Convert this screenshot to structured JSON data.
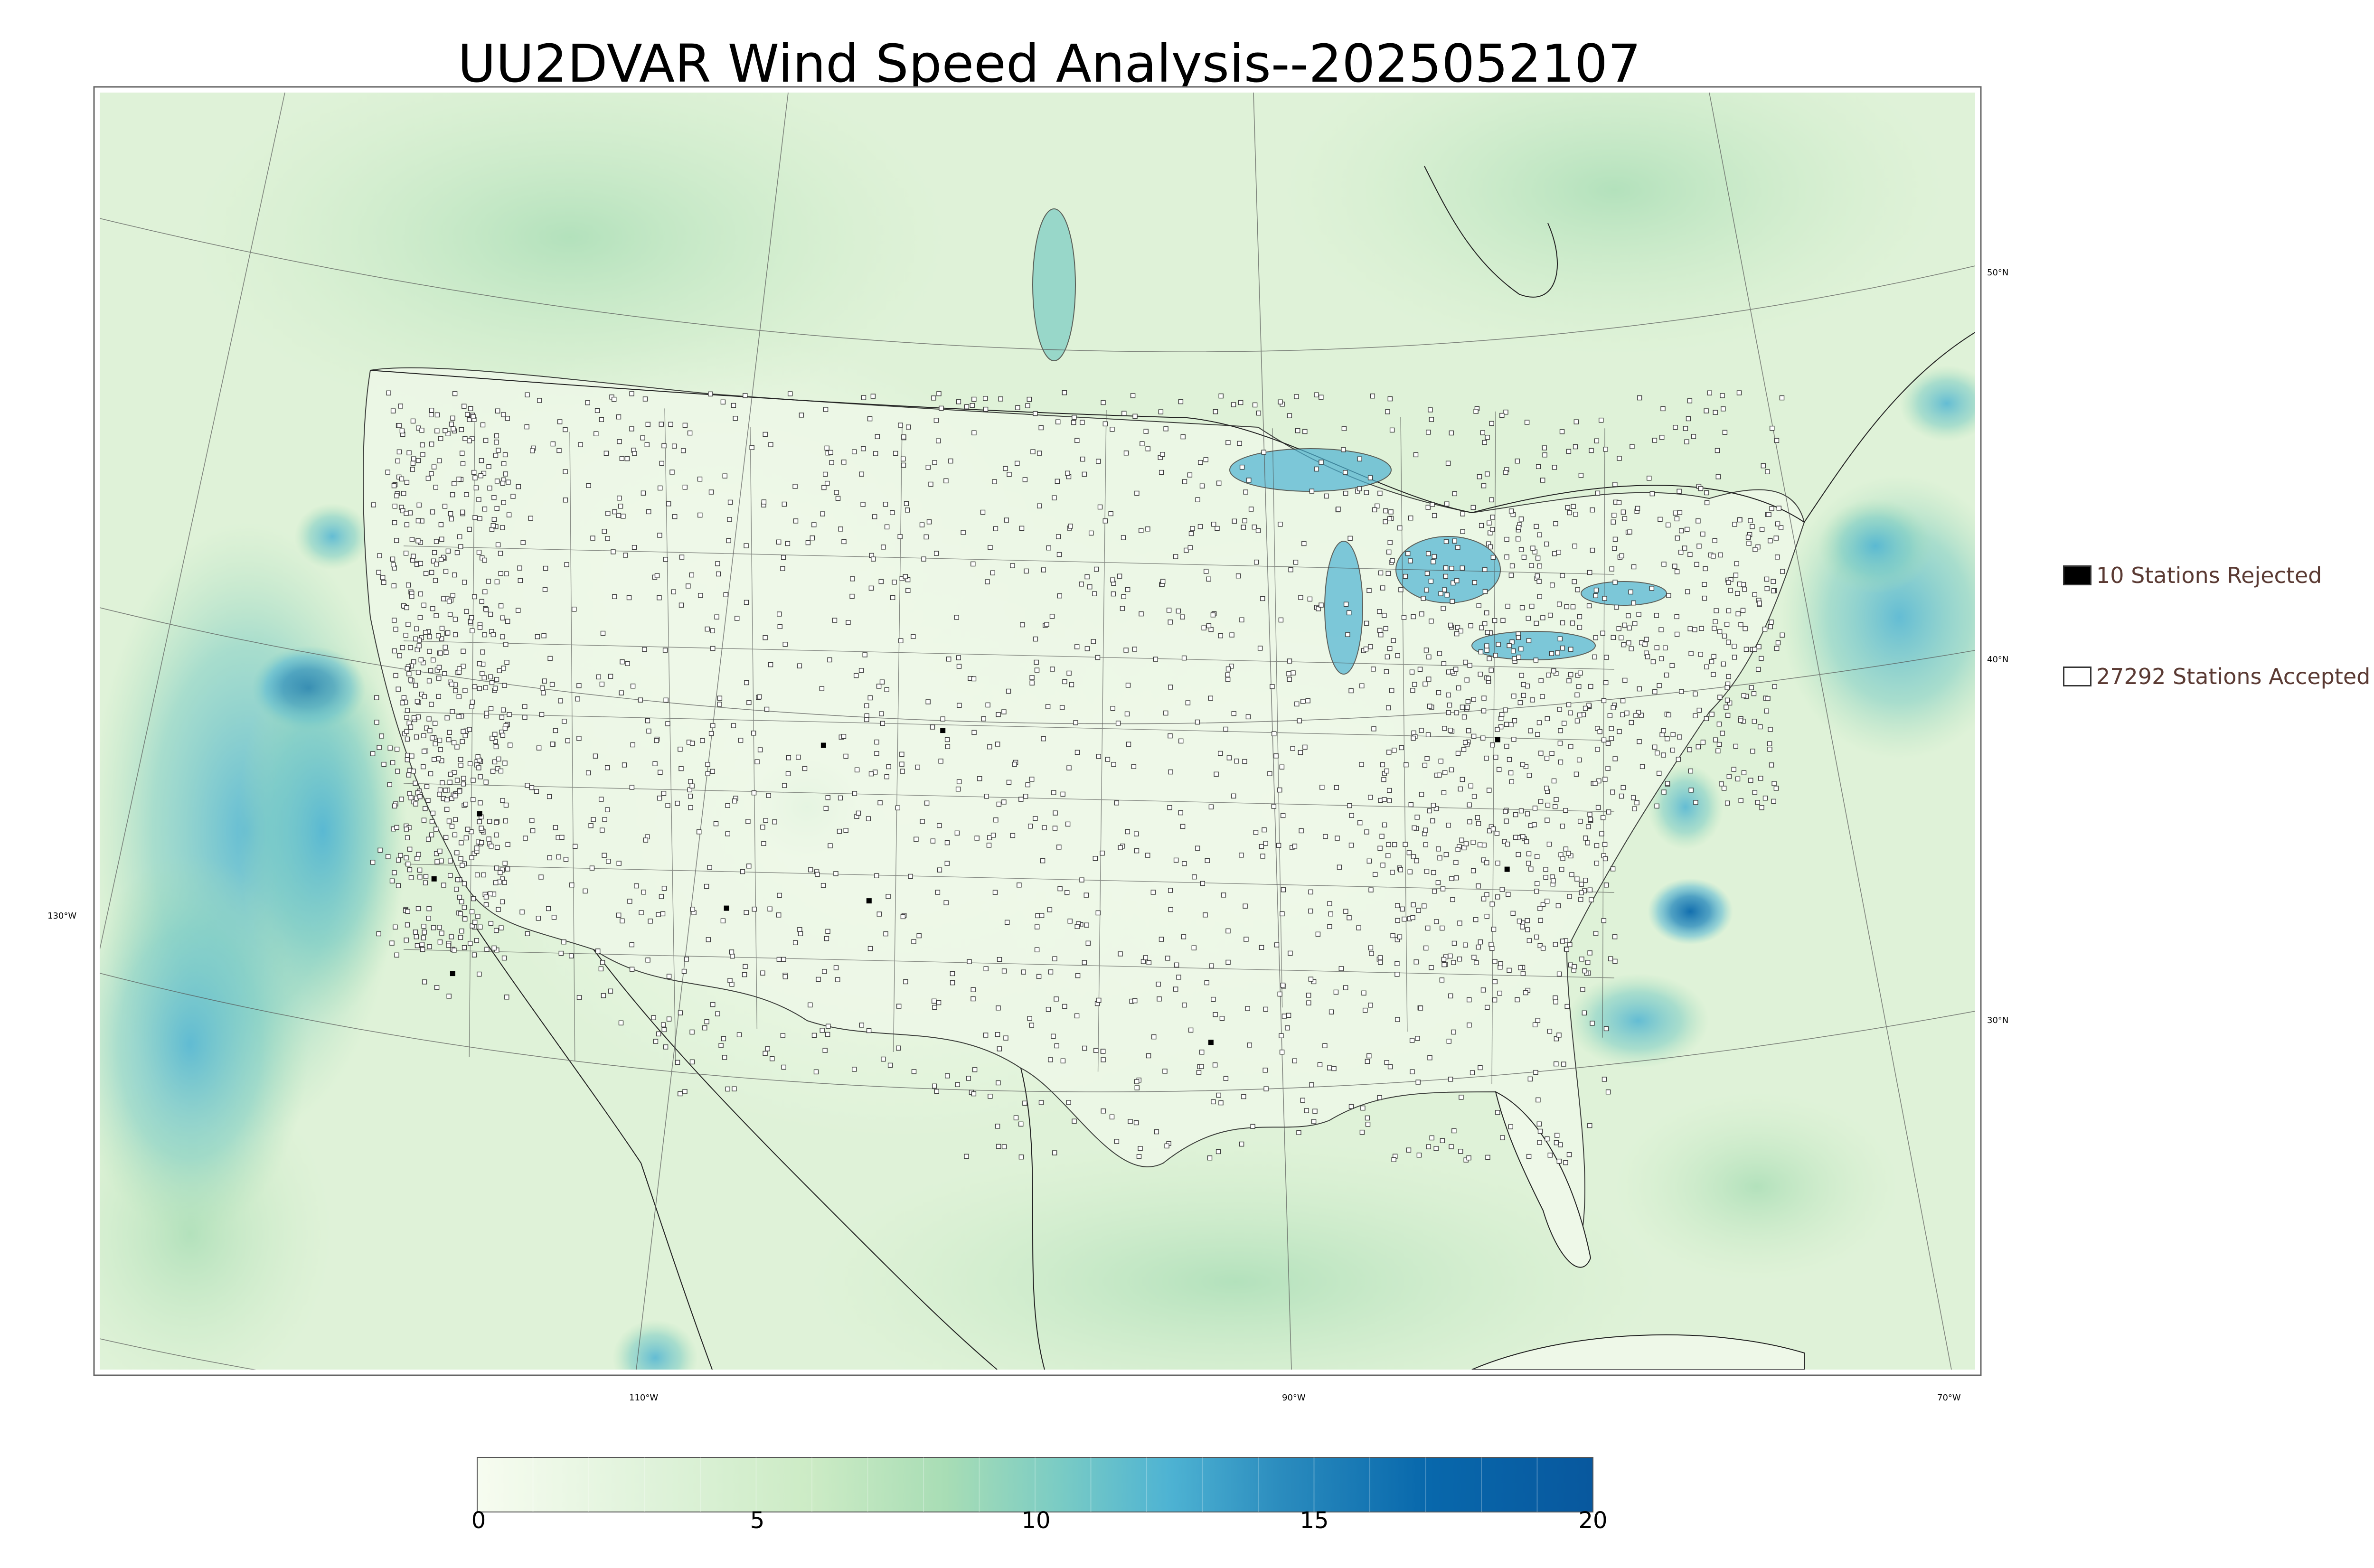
{
  "title": "UU2DVAR Wind Speed Analysis--2025052107",
  "legend": {
    "rejected": "10 Stations Rejected",
    "accepted": "27292 Stations Accepted"
  },
  "colorbar": {
    "ticks": [
      "0",
      "5",
      "10",
      "15",
      "20"
    ],
    "min": 0,
    "max": 20,
    "colors": [
      "#f7fcf0",
      "#e0f3db",
      "#ccebc5",
      "#a8ddb5",
      "#7bccc4",
      "#4eb3d3",
      "#2b8cbe",
      "#0868ac",
      "#08589e"
    ]
  },
  "lat_labels": [
    "50°N",
    "40°N",
    "30°N"
  ],
  "lon_labels": [
    "130°W",
    "110°W",
    "90°W",
    "70°W"
  ],
  "stations": {
    "rejected_count": 10,
    "accepted_count": 27292
  }
}
